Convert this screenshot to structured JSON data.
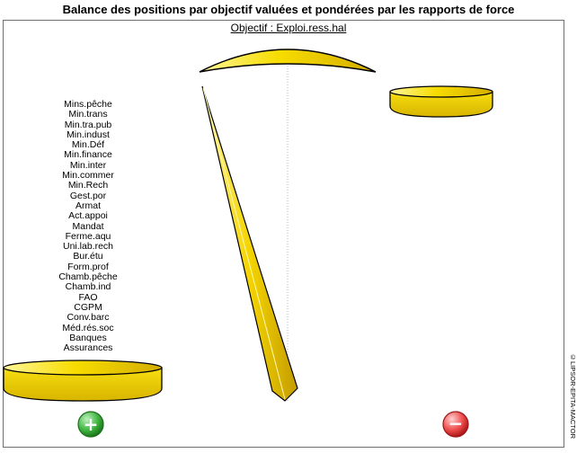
{
  "title": "Balance des positions par objectif valuées et pondérées par les rapports de force",
  "objective_label": "Objectif : Exploi.ress.hal",
  "actors": [
    "Mins.pêche",
    "Min.trans",
    "Min.tra.pub",
    "Min.indust",
    "Min.Déf",
    "Min.finance",
    "Min.inter",
    "Min.commer",
    "Min.Rech",
    "Gest.por",
    "Armat",
    "Act.appoi",
    "Mandat",
    "Ferme.aqu",
    "Uni.lab.rech",
    "Bur.étu",
    "Form.prof",
    "Chamb.pêche",
    "Chamb.ind",
    "FAO",
    "CGPM",
    "Conv.barc",
    "Méd.rés.soc",
    "Banques",
    "Assurances"
  ],
  "plus_symbol": "+",
  "minus_symbol": "−",
  "copyright": "©LIPSOR-EPITA-MACTOR",
  "colors": {
    "pan_fill": "#f5d800",
    "pan_highlight": "#fff7a0",
    "pan_shadow": "#c9a300",
    "plus_button": "#2aa02a",
    "minus_button": "#e03030"
  }
}
